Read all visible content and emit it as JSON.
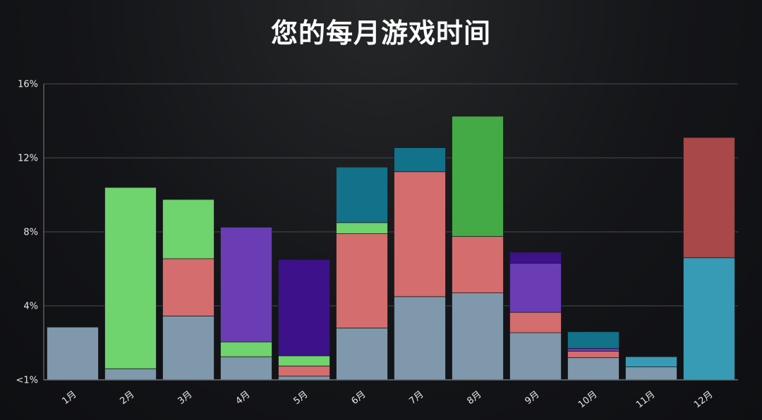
{
  "chart_data": {
    "type": "bar",
    "stacked": true,
    "title": "您的每月游戏时间",
    "xlabel": "",
    "ylabel": "",
    "categories": [
      "1月",
      "2月",
      "3月",
      "4月",
      "5月",
      "6月",
      "7月",
      "8月",
      "9月",
      "10月",
      "11月",
      "12月"
    ],
    "y_ticks": [
      {
        "value": 0,
        "label": "<1%"
      },
      {
        "value": 4,
        "label": "4%"
      },
      {
        "value": 8,
        "label": "8%"
      },
      {
        "value": 12,
        "label": "12%"
      },
      {
        "value": 16,
        "label": "16%"
      }
    ],
    "ylim": [
      0,
      16
    ],
    "grid": true,
    "segments": [
      [
        {
          "value": 2.85,
          "color": "#7f98ab"
        }
      ],
      [
        {
          "value": 0.6,
          "color": "#7f98ab"
        },
        {
          "value": 9.8,
          "color": "#6fd36e"
        }
      ],
      [
        {
          "value": 3.45,
          "color": "#7f98ab"
        },
        {
          "value": 3.1,
          "color": "#d46d6d"
        },
        {
          "value": 3.2,
          "color": "#6fd36e"
        }
      ],
      [
        {
          "value": 1.25,
          "color": "#7f98ab"
        },
        {
          "value": 0.8,
          "color": "#6fd36e"
        },
        {
          "value": 6.2,
          "color": "#6a3db5"
        }
      ],
      [
        {
          "value": 0.2,
          "color": "#7f98ab"
        },
        {
          "value": 0.55,
          "color": "#d46d6d"
        },
        {
          "value": 0.55,
          "color": "#6fd36e"
        },
        {
          "value": 5.2,
          "color": "#3c118a"
        }
      ],
      [
        {
          "value": 2.8,
          "color": "#7f98ab"
        },
        {
          "value": 5.1,
          "color": "#d46d6d"
        },
        {
          "value": 0.6,
          "color": "#6fd36e"
        },
        {
          "value": 3.0,
          "color": "#117289"
        }
      ],
      [
        {
          "value": 4.5,
          "color": "#7f98ab"
        },
        {
          "value": 6.75,
          "color": "#d46d6d"
        },
        {
          "value": 1.3,
          "color": "#117289"
        }
      ],
      [
        {
          "value": 4.7,
          "color": "#7f98ab"
        },
        {
          "value": 3.05,
          "color": "#d46d6d"
        },
        {
          "value": 6.5,
          "color": "#44aa46"
        }
      ],
      [
        {
          "value": 2.55,
          "color": "#7f98ab"
        },
        {
          "value": 1.1,
          "color": "#d46d6d"
        },
        {
          "value": 2.65,
          "color": "#6a3db5"
        },
        {
          "value": 0.6,
          "color": "#3c118a"
        }
      ],
      [
        {
          "value": 1.2,
          "color": "#7f98ab"
        },
        {
          "value": 0.35,
          "color": "#d46d6d"
        },
        {
          "value": 0.15,
          "color": "#6a3db5"
        },
        {
          "value": 0.9,
          "color": "#117289"
        }
      ],
      [
        {
          "value": 0.7,
          "color": "#7f98ab"
        },
        {
          "value": 0.55,
          "color": "#389bb5"
        }
      ],
      [
        {
          "value": 6.6,
          "color": "#389bb5"
        },
        {
          "value": 6.5,
          "color": "#a84848"
        }
      ]
    ],
    "colors": {
      "background": "#141518",
      "grid": "#3c4147",
      "axis": "#6a6f75",
      "text": "#e8e8e8",
      "title": "#ffffff"
    }
  }
}
